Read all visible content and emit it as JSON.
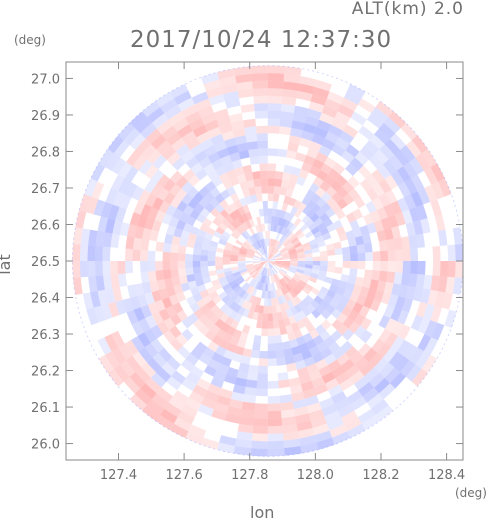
{
  "header": {
    "altitude_label": "ALT(km)  2.0",
    "timestamp": "2017/10/24 12:37:30"
  },
  "chart_data": {
    "type": "heatmap",
    "title": "2017/10/24 12:37:30",
    "subtitle": "ALT(km)  2.0",
    "xlabel": "lon",
    "ylabel": "lat",
    "x_unit": "(deg)",
    "y_unit": "(deg)",
    "xlim": [
      127.24,
      128.45
    ],
    "ylim": [
      25.955,
      27.045
    ],
    "x_ticks": [
      "127.4",
      "127.6",
      "127.8",
      "128.0",
      "128.2",
      "128.4"
    ],
    "x_tick_values": [
      127.4,
      127.6,
      127.8,
      128.0,
      128.2,
      128.4
    ],
    "y_ticks": [
      "26.0",
      "26.1",
      "26.2",
      "26.3",
      "26.4",
      "26.5",
      "26.6",
      "26.7",
      "26.8",
      "26.9",
      "27.0"
    ],
    "y_tick_values": [
      26.0,
      26.1,
      26.2,
      26.3,
      26.4,
      26.5,
      26.6,
      26.7,
      26.8,
      26.9,
      27.0
    ],
    "radar_center": [
      127.855,
      26.5
    ],
    "radar_radius_deg_lat": 0.535,
    "colormap": [
      "#4a5cff",
      "#ffffff",
      "#ff4a4a"
    ],
    "grid": false
  },
  "colors": {
    "axis": "#8a8a8a",
    "text": "#707070",
    "negative": "#7f8cff",
    "positive": "#ff7f7f"
  }
}
